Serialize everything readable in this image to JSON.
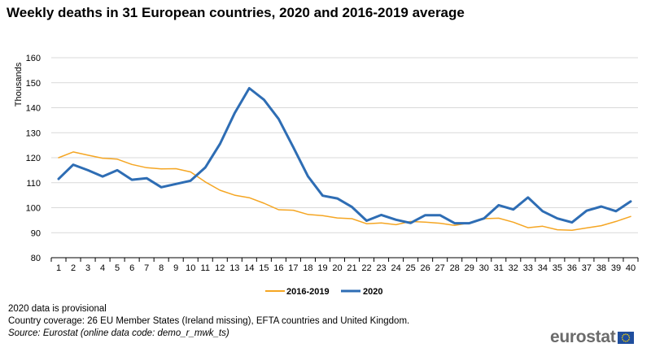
{
  "title": "Weekly deaths in 31 European countries, 2020 and 2016-2019 average",
  "notes": [
    "2020 data is provisional",
    "Country coverage: 26 EU Member States (Ireland missing), EFTA countries and United Kingdom."
  ],
  "source": "Source: Eurostat (online data code: demo_r_mwk_ts)",
  "brand": {
    "text": "eurostat",
    "logo_icon": "eu-flag-icon"
  },
  "chart_data": {
    "type": "line",
    "title": "",
    "xlabel": "",
    "ylabel": "Thousands",
    "ylim": [
      80,
      160
    ],
    "yticks": [
      80,
      90,
      100,
      110,
      120,
      130,
      140,
      150,
      160
    ],
    "grid": "horizontal",
    "legend_position": "bottom",
    "x": [
      1,
      2,
      3,
      4,
      5,
      6,
      7,
      8,
      9,
      10,
      11,
      12,
      13,
      14,
      15,
      16,
      17,
      18,
      19,
      20,
      21,
      22,
      23,
      24,
      25,
      26,
      27,
      28,
      29,
      30,
      31,
      32,
      33,
      34,
      35,
      36,
      37,
      38,
      39,
      40
    ],
    "series": [
      {
        "name": "2016-2019",
        "color": "#f5a623",
        "values": [
          120,
          122.3,
          121,
          119.8,
          119.4,
          117.3,
          116,
          115.5,
          115.6,
          114.3,
          110.3,
          107,
          105,
          104,
          101.8,
          99.2,
          99,
          97.3,
          96.8,
          95.9,
          95.6,
          93.6,
          93.9,
          93.2,
          94.5,
          94.2,
          93.8,
          92.9,
          93.9,
          95.6,
          95.8,
          94.2,
          92,
          92.6,
          91.2,
          91,
          91.9,
          92.8,
          94.5,
          96.5
        ]
      },
      {
        "name": "2020",
        "color": "#2e6db4",
        "values": [
          111.5,
          117.2,
          115,
          112.5,
          115,
          111.2,
          111.8,
          108.2,
          109.5,
          110.8,
          116.1,
          125.5,
          137.8,
          147.8,
          143.2,
          135.5,
          124.2,
          112.6,
          104.8,
          103.7,
          100.3,
          94.8,
          97.1,
          95.2,
          93.9,
          97,
          97,
          93.8,
          93.8,
          95.7,
          101,
          99.3,
          104.1,
          98.6,
          95.7,
          94.1,
          98.8,
          100.5,
          98.6,
          102.5
        ]
      }
    ]
  }
}
